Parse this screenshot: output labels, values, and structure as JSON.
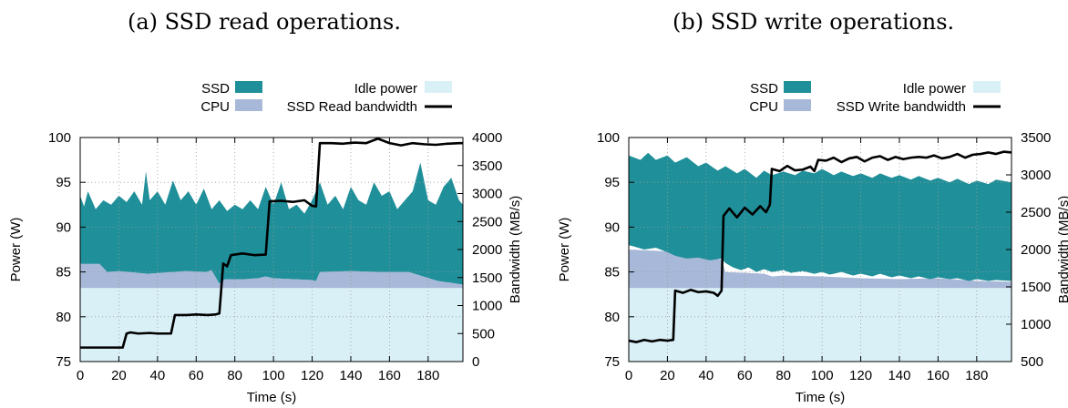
{
  "captions": {
    "a": "(a) SSD read operations.",
    "b": "(b) SSD write operations."
  },
  "colors": {
    "ssd": "#1f8f99",
    "cpu": "#a8b8d8",
    "idle": "#d9f0f7",
    "bandwidth": "#000000"
  },
  "chart_data": [
    {
      "type": "area",
      "caption": "(a) SSD read operations.",
      "xlabel": "Time (s)",
      "ylabel": "Power (W)",
      "y2label": "Bandwidth (MB/s)",
      "xlim": [
        0,
        198
      ],
      "ylim": [
        75,
        100
      ],
      "y2lim": [
        0,
        4000
      ],
      "xticks": [
        0,
        20,
        40,
        60,
        80,
        100,
        120,
        140,
        160,
        180
      ],
      "yticks": [
        75,
        80,
        85,
        90,
        95,
        100
      ],
      "y2ticks": [
        0,
        500,
        1000,
        1500,
        2000,
        2500,
        3000,
        3500,
        4000
      ],
      "grid": true,
      "legend": [
        {
          "label": "SSD",
          "key": "ssd"
        },
        {
          "label": "CPU",
          "key": "cpu"
        },
        {
          "label": "Idle power",
          "key": "idle"
        },
        {
          "label": "SSD Read bandwidth",
          "key": "bandwidth"
        }
      ],
      "idle_power": 83.2,
      "cpu_top": [
        [
          0,
          85.9
        ],
        [
          10,
          85.9
        ],
        [
          14,
          85.0
        ],
        [
          20,
          85.1
        ],
        [
          35,
          84.8
        ],
        [
          48,
          85.0
        ],
        [
          55,
          85.1
        ],
        [
          65,
          85.0
        ],
        [
          68,
          85.2
        ],
        [
          72,
          83.7
        ],
        [
          75,
          84.2
        ],
        [
          85,
          84.2
        ],
        [
          92,
          84.3
        ],
        [
          96,
          84.5
        ],
        [
          100,
          84.3
        ],
        [
          110,
          84.2
        ],
        [
          120,
          84.1
        ],
        [
          122,
          84.0
        ],
        [
          124,
          85.0
        ],
        [
          140,
          85.1
        ],
        [
          155,
          85.0
        ],
        [
          170,
          85.0
        ],
        [
          185,
          84.0
        ],
        [
          198,
          83.6
        ]
      ],
      "total_power": [
        [
          0,
          93.5
        ],
        [
          2,
          92.3
        ],
        [
          4,
          94.0
        ],
        [
          8,
          92.0
        ],
        [
          12,
          93.0
        ],
        [
          16,
          92.5
        ],
        [
          20,
          93.5
        ],
        [
          24,
          92.8
        ],
        [
          28,
          94.0
        ],
        [
          32,
          92.5
        ],
        [
          34,
          96.2
        ],
        [
          36,
          93.0
        ],
        [
          40,
          94.0
        ],
        [
          44,
          92.5
        ],
        [
          48,
          95.2
        ],
        [
          52,
          93.0
        ],
        [
          56,
          94.0
        ],
        [
          60,
          92.5
        ],
        [
          64,
          94.3
        ],
        [
          68,
          92.0
        ],
        [
          72,
          93.0
        ],
        [
          76,
          91.8
        ],
        [
          80,
          92.5
        ],
        [
          84,
          92.0
        ],
        [
          88,
          93.0
        ],
        [
          92,
          92.0
        ],
        [
          96,
          94.5
        ],
        [
          100,
          92.5
        ],
        [
          104,
          95.0
        ],
        [
          108,
          92.0
        ],
        [
          112,
          92.5
        ],
        [
          116,
          91.5
        ],
        [
          120,
          93.0
        ],
        [
          124,
          95.0
        ],
        [
          128,
          92.5
        ],
        [
          132,
          93.5
        ],
        [
          136,
          92.0
        ],
        [
          140,
          94.5
        ],
        [
          144,
          93.0
        ],
        [
          148,
          92.5
        ],
        [
          152,
          95.0
        ],
        [
          156,
          93.5
        ],
        [
          160,
          94.0
        ],
        [
          164,
          92.0
        ],
        [
          168,
          93.0
        ],
        [
          172,
          94.0
        ],
        [
          176,
          97.2
        ],
        [
          180,
          93.0
        ],
        [
          184,
          92.5
        ],
        [
          188,
          94.5
        ],
        [
          192,
          95.5
        ],
        [
          196,
          93.0
        ],
        [
          198,
          92.5
        ]
      ],
      "bandwidth": [
        [
          0,
          250
        ],
        [
          22,
          250
        ],
        [
          24,
          500
        ],
        [
          26,
          520
        ],
        [
          30,
          500
        ],
        [
          36,
          510
        ],
        [
          40,
          500
        ],
        [
          47,
          500
        ],
        [
          49,
          830
        ],
        [
          55,
          830
        ],
        [
          60,
          840
        ],
        [
          66,
          830
        ],
        [
          70,
          840
        ],
        [
          72,
          860
        ],
        [
          74,
          1750
        ],
        [
          76,
          1700
        ],
        [
          78,
          1900
        ],
        [
          84,
          1930
        ],
        [
          90,
          1900
        ],
        [
          96,
          1910
        ],
        [
          98,
          2860
        ],
        [
          104,
          2870
        ],
        [
          110,
          2850
        ],
        [
          116,
          2880
        ],
        [
          120,
          2780
        ],
        [
          122,
          2770
        ],
        [
          124,
          3900
        ],
        [
          130,
          3900
        ],
        [
          136,
          3890
        ],
        [
          142,
          3910
        ],
        [
          148,
          3900
        ],
        [
          154,
          3980
        ],
        [
          160,
          3900
        ],
        [
          166,
          3860
        ],
        [
          172,
          3900
        ],
        [
          178,
          3880
        ],
        [
          184,
          3870
        ],
        [
          190,
          3890
        ],
        [
          196,
          3900
        ],
        [
          198,
          3900
        ]
      ]
    },
    {
      "type": "area",
      "caption": "(b) SSD write operations.",
      "xlabel": "Time (s)",
      "ylabel": "Power (W)",
      "y2label": "Bandwidth (MB/s)",
      "xlim": [
        0,
        198
      ],
      "ylim": [
        75,
        100
      ],
      "y2lim": [
        500,
        3500
      ],
      "xticks": [
        0,
        20,
        40,
        60,
        80,
        100,
        120,
        140,
        160,
        180
      ],
      "yticks": [
        75,
        80,
        85,
        90,
        95,
        100
      ],
      "y2ticks": [
        500,
        1000,
        1500,
        2000,
        2500,
        3000,
        3500
      ],
      "grid": true,
      "legend": [
        {
          "label": "SSD",
          "key": "ssd"
        },
        {
          "label": "CPU",
          "key": "cpu"
        },
        {
          "label": "Idle power",
          "key": "idle"
        },
        {
          "label": "SSD Write bandwidth",
          "key": "bandwidth"
        }
      ],
      "idle_power": 83.2,
      "cpu_top": [
        [
          0,
          87.5
        ],
        [
          20,
          87.3
        ],
        [
          24,
          86.8
        ],
        [
          48,
          86.4
        ],
        [
          50,
          85.0
        ],
        [
          70,
          84.8
        ],
        [
          74,
          84.5
        ],
        [
          80,
          84.6
        ],
        [
          100,
          84.5
        ],
        [
          120,
          84.3
        ],
        [
          140,
          84.2
        ],
        [
          160,
          84.3
        ],
        [
          180,
          84.0
        ],
        [
          198,
          83.9
        ]
      ],
      "ssd_top": [
        [
          0,
          98.0
        ],
        [
          6,
          97.5
        ],
        [
          10,
          98.3
        ],
        [
          14,
          97.5
        ],
        [
          20,
          98.0
        ],
        [
          24,
          97.2
        ],
        [
          30,
          97.8
        ],
        [
          36,
          96.8
        ],
        [
          40,
          97.2
        ],
        [
          46,
          96.3
        ],
        [
          50,
          96.8
        ],
        [
          56,
          96.0
        ],
        [
          60,
          96.5
        ],
        [
          66,
          95.5
        ],
        [
          70,
          96.3
        ],
        [
          74,
          95.8
        ],
        [
          80,
          96.2
        ],
        [
          86,
          95.8
        ],
        [
          90,
          96.3
        ],
        [
          96,
          96.0
        ],
        [
          100,
          96.5
        ],
        [
          106,
          95.8
        ],
        [
          110,
          96.2
        ],
        [
          116,
          95.7
        ],
        [
          120,
          96.0
        ],
        [
          126,
          95.5
        ],
        [
          130,
          96.0
        ],
        [
          136,
          95.5
        ],
        [
          140,
          95.8
        ],
        [
          146,
          95.3
        ],
        [
          150,
          95.7
        ],
        [
          156,
          95.2
        ],
        [
          160,
          95.5
        ],
        [
          166,
          95.0
        ],
        [
          170,
          95.4
        ],
        [
          176,
          94.8
        ],
        [
          180,
          95.2
        ],
        [
          186,
          94.8
        ],
        [
          190,
          95.3
        ],
        [
          198,
          95.0
        ]
      ],
      "ssd_bottom": [
        [
          0,
          88.0
        ],
        [
          8,
          87.5
        ],
        [
          14,
          87.7
        ],
        [
          20,
          87.2
        ],
        [
          24,
          86.8
        ],
        [
          30,
          86.5
        ],
        [
          36,
          86.6
        ],
        [
          42,
          86.3
        ],
        [
          48,
          86.5
        ],
        [
          50,
          86.0
        ],
        [
          54,
          85.5
        ],
        [
          58,
          85.2
        ],
        [
          62,
          85.5
        ],
        [
          66,
          85.0
        ],
        [
          70,
          85.3
        ],
        [
          74,
          85.0
        ],
        [
          80,
          85.2
        ],
        [
          84,
          84.9
        ],
        [
          90,
          85.1
        ],
        [
          96,
          84.8
        ],
        [
          100,
          85.0
        ],
        [
          104,
          84.7
        ],
        [
          110,
          85.0
        ],
        [
          116,
          84.6
        ],
        [
          120,
          84.8
        ],
        [
          126,
          84.5
        ],
        [
          130,
          84.8
        ],
        [
          136,
          84.4
        ],
        [
          140,
          84.6
        ],
        [
          146,
          84.3
        ],
        [
          150,
          84.5
        ],
        [
          156,
          84.2
        ],
        [
          160,
          84.4
        ],
        [
          166,
          84.2
        ],
        [
          170,
          84.3
        ],
        [
          176,
          84.0
        ],
        [
          180,
          84.2
        ],
        [
          186,
          84.0
        ],
        [
          190,
          84.1
        ],
        [
          198,
          84.0
        ]
      ],
      "bandwidth": [
        [
          0,
          780
        ],
        [
          4,
          760
        ],
        [
          8,
          790
        ],
        [
          12,
          770
        ],
        [
          16,
          790
        ],
        [
          20,
          780
        ],
        [
          23,
          790
        ],
        [
          24,
          1450
        ],
        [
          28,
          1420
        ],
        [
          32,
          1460
        ],
        [
          36,
          1430
        ],
        [
          40,
          1440
        ],
        [
          44,
          1420
        ],
        [
          46,
          1380
        ],
        [
          48,
          1450
        ],
        [
          49,
          2450
        ],
        [
          52,
          2550
        ],
        [
          56,
          2430
        ],
        [
          60,
          2560
        ],
        [
          64,
          2470
        ],
        [
          68,
          2580
        ],
        [
          71,
          2500
        ],
        [
          73,
          2600
        ],
        [
          74,
          3080
        ],
        [
          78,
          3050
        ],
        [
          82,
          3120
        ],
        [
          86,
          3060
        ],
        [
          90,
          3070
        ],
        [
          94,
          3110
        ],
        [
          96,
          3050
        ],
        [
          98,
          3200
        ],
        [
          102,
          3190
        ],
        [
          106,
          3230
        ],
        [
          110,
          3170
        ],
        [
          114,
          3220
        ],
        [
          118,
          3240
        ],
        [
          122,
          3180
        ],
        [
          126,
          3230
        ],
        [
          130,
          3250
        ],
        [
          134,
          3200
        ],
        [
          138,
          3240
        ],
        [
          142,
          3210
        ],
        [
          146,
          3230
        ],
        [
          150,
          3240
        ],
        [
          154,
          3230
        ],
        [
          158,
          3260
        ],
        [
          162,
          3220
        ],
        [
          166,
          3240
        ],
        [
          170,
          3280
        ],
        [
          174,
          3230
        ],
        [
          178,
          3270
        ],
        [
          182,
          3280
        ],
        [
          186,
          3300
        ],
        [
          190,
          3280
        ],
        [
          194,
          3310
        ],
        [
          198,
          3300
        ]
      ]
    }
  ]
}
